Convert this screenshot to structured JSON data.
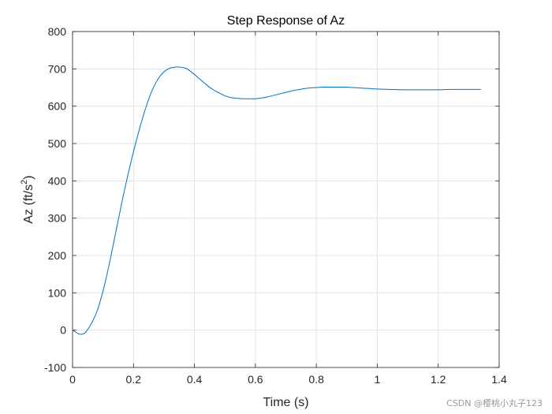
{
  "chart_data": {
    "type": "line",
    "title": "Step Response of Az",
    "xlabel": "Time (s)",
    "ylabel": "Az (ft/s",
    "ylabel_superscript": "2",
    "ylabel_close": ")",
    "xlim": [
      0,
      1.4
    ],
    "ylim": [
      -100,
      800
    ],
    "xticks": [
      0,
      0.2,
      0.4,
      0.6,
      0.8,
      1,
      1.2,
      1.4
    ],
    "xtick_labels": [
      "0",
      "0.2",
      "0.4",
      "0.6",
      "0.8",
      "1",
      "1.2",
      "1.4"
    ],
    "yticks": [
      -100,
      0,
      100,
      200,
      300,
      400,
      500,
      600,
      700,
      800
    ],
    "ytick_labels": [
      "-100",
      "0",
      "100",
      "200",
      "300",
      "400",
      "500",
      "600",
      "700",
      "800"
    ],
    "grid": true,
    "series": [
      {
        "color": "#0072bd",
        "x": [
          0,
          0.01,
          0.02,
          0.03,
          0.04,
          0.05,
          0.06,
          0.08,
          0.1,
          0.12,
          0.14,
          0.16,
          0.18,
          0.2,
          0.22,
          0.24,
          0.26,
          0.28,
          0.3,
          0.32,
          0.34,
          0.36,
          0.37,
          0.38,
          0.4,
          0.42,
          0.44,
          0.46,
          0.48,
          0.5,
          0.52,
          0.54,
          0.56,
          0.58,
          0.6,
          0.62,
          0.64,
          0.66,
          0.68,
          0.7,
          0.72,
          0.74,
          0.76,
          0.78,
          0.8,
          0.82,
          0.84,
          0.86,
          0.88,
          0.9,
          0.92,
          0.94,
          0.96,
          0.98,
          1.0,
          1.04,
          1.08,
          1.12,
          1.16,
          1.2,
          1.24,
          1.28,
          1.32,
          1.34
        ],
        "y": [
          0,
          -5,
          -10,
          -11,
          -8,
          2,
          15,
          50,
          105,
          175,
          255,
          335,
          410,
          478,
          540,
          595,
          640,
          672,
          692,
          702,
          705,
          704,
          702,
          698,
          685,
          671,
          657,
          645,
          636,
          628,
          623,
          621,
          620,
          620,
          620,
          622,
          625,
          629,
          633,
          637,
          641,
          644,
          647,
          649,
          650,
          651,
          651,
          651,
          651,
          651,
          650,
          649,
          648,
          647,
          646,
          645,
          644,
          644,
          644,
          644,
          645,
          645,
          645,
          645
        ]
      }
    ]
  },
  "watermark": "CSDN @樱桃小丸子123"
}
